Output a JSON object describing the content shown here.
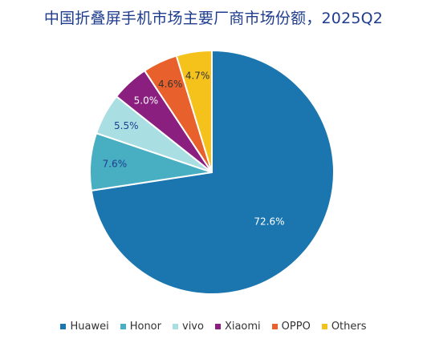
{
  "chart_data": {
    "type": "pie",
    "title": "中国折叠屏手机市场主要厂商市场份额，2025Q2",
    "categories": [
      "Huawei",
      "Honor",
      "vivo",
      "Xiaomi",
      "OPPO",
      "Others"
    ],
    "values": [
      72.6,
      7.6,
      5.5,
      5.0,
      4.6,
      4.7
    ],
    "labels": [
      "72.6%",
      "7.6%",
      "5.5%",
      "5.0%",
      "4.6%",
      "4.7%"
    ],
    "colors": [
      "#1b76b0",
      "#48aec2",
      "#a9dfe3",
      "#8a1f7f",
      "#e8612c",
      "#f4c21a"
    ],
    "label_colors": [
      "#ffffff",
      "#1b3f8f",
      "#1b3f8f",
      "#ffffff",
      "#333333",
      "#333333"
    ],
    "legend_position": "bottom"
  }
}
